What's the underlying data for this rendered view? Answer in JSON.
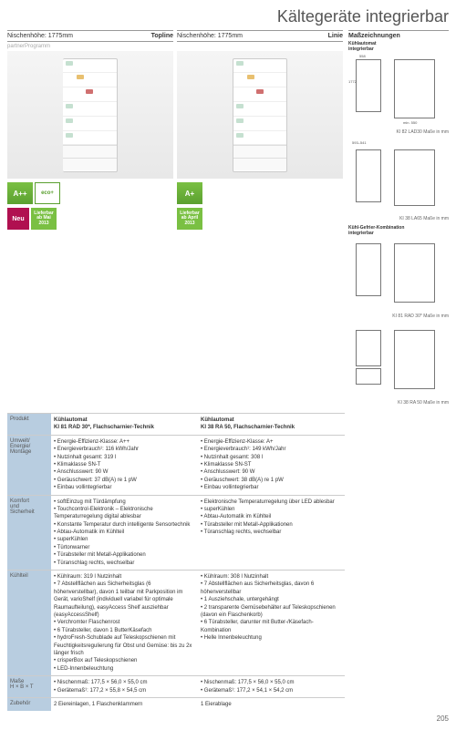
{
  "page_title": "Kältegeräte integrierbar",
  "page_number": "205",
  "col1_header": {
    "niche": "Nischenhöhe: 1775mm",
    "line": "Topline",
    "sub": "partnerProgramm"
  },
  "col2_header": {
    "niche": "Nischenhöhe: 1775mm",
    "line": "Linie"
  },
  "side_header": "Maßzeichnungen",
  "badges": {
    "energy1": "A++",
    "eco": "eco+",
    "neu": "Neu",
    "avail1": "Lieferbar ab Mai 2013",
    "energy2": "A+",
    "avail2": "Lieferbar ab April 2013"
  },
  "rows": {
    "produkt": {
      "label": "Produkt",
      "c1": "Kühlautomat\nKI 81 RAD 30*, Flachscharnier-Technik",
      "c2": "Kühlautomat\nKI 38 RA 50, Flachscharnier-Technik"
    },
    "umwelt": {
      "label": "Umwelt/\nEnergie/\nMontage",
      "c1": [
        "Energie-Effizienz-Klasse: A++",
        "Energieverbrauch¹: 116 kWh/Jahr",
        "Nutzinhalt gesamt: 319 l",
        "Klimaklasse SN-T",
        "Anschlusswert: 90 W",
        "Geräuschwert: 37 dB(A) re 1 pW",
        "Einbau vollintegrierbar"
      ],
      "c2": [
        "Energie-Effizienz-Klasse: A+",
        "Energieverbrauch¹: 149 kWh/Jahr",
        "Nutzinhalt gesamt: 308 l",
        "Klimaklasse SN-ST",
        "Anschlusswert: 90 W",
        "Geräuschwert: 38 dB(A) re 1 pW",
        "Einbau vollintegrierbar"
      ]
    },
    "komfort": {
      "label": "Komfort\nund\nSicherheit",
      "c1": [
        "softEinzug mit Türdämpfung",
        "Touchcontrol-Elektronik – Elektronische Temperaturregelung digital ablesbar",
        "Konstante Temperatur durch intelligente Sensortechnik",
        "Abtau-Automatik im Kühlteil",
        "superKühlen",
        "Türtonwarner",
        "Türabsteller mit Metall-Applikationen",
        "Türanschlag rechts, wechselbar"
      ],
      "c2": [
        "Elektronische Temperaturregelung über LED ablesbar",
        "superKühlen",
        "Abtau-Automatik im Kühlteil",
        "Türabsteller mit Metall-Applikationen",
        "Türanschlag rechts, wechselbar"
      ]
    },
    "kuhlteil": {
      "label": "Kühlteil",
      "c1": [
        "Kühlraum: 319 l Nutzinhalt",
        "7 Abstellflächen aus Sicherheitsglas (6 höhenverstellbar), davon 1 teilbar mit Parkposition im Gerät, varioShelf (individuell variabel für optimale Raumaufteilung), easyAccess Shelf ausziehbar (easyAccessShelf)",
        "Verchromter Flaschenrost",
        "6 Türabsteller, davon 1 ButterKäsefach",
        "hydroFresh-Schublade auf Teleskopschienen mit Feuchtigkeitsregulierung für Obst und Gemüse: bis zu 2x länger frisch",
        "crisperBox auf Teleskopschienen",
        "LED-Innenbeleuchtung"
      ],
      "c2": [
        "Kühlraum: 308 l Nutzinhalt",
        "7 Abstellflächen aus Sicherheitsglas, davon 6 höhenverstellbar",
        "1 Ausziehschale, untergehängt",
        "2 transparente Gemüsebehälter auf Teleskopschienen (davon ein Flaschenkorb)",
        "6 Türabsteller, darunter mit Butter-/Käsefach-Kombination",
        "Helle Innenbeleuchtung"
      ]
    },
    "masse": {
      "label": "Maße\nH × B × T",
      "c1": [
        "Nischenmaß: 177,5 × 56,0 × 55,0 cm",
        "Gerätemaß¹: 177,2 × 55,8 × 54,5 cm"
      ],
      "c2": [
        "Nischenmaß: 177,5 × 56,0 × 55,0 cm",
        "Gerätemaß¹:  177,2 × 54,1 × 54,2 cm"
      ]
    },
    "zubehor": {
      "label": "Zubehör",
      "c1": "2 Eiereinlagen, 1 Flaschenklammern",
      "c2": "1 Eierablage"
    }
  },
  "tech": {
    "t1": {
      "title": "Kühlautomat\nintegrierbar",
      "label": "KI 82 LAD30",
      "units": "Maße in mm"
    },
    "t2": {
      "title": "",
      "label": "KI 38 LA65",
      "units": "Maße in mm"
    },
    "t3": {
      "title": "Kühl-Gefrier-Kombination\nintegrierbar",
      "label": "KI 81 RAD 30*",
      "units": "Maße in mm"
    },
    "t4": {
      "title": "",
      "label": "KI 38 RA 50",
      "units": "Maße in mm"
    },
    "dims": {
      "w": "558",
      "h": "1772",
      "d": "545",
      "niche_h": "1775+8",
      "niche_h2": "593–541",
      "d2": "min. 550"
    }
  }
}
